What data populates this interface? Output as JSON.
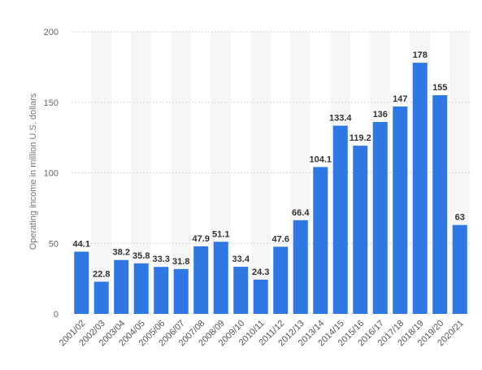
{
  "chart_data": {
    "type": "bar",
    "categories": [
      "2001/02",
      "2002/03",
      "2003/04",
      "2004/05",
      "2005/06",
      "2006/07",
      "2007/08",
      "2008/09",
      "2009/10",
      "2010/11",
      "2011/12",
      "2012/13",
      "2013/14",
      "2014/15",
      "2015/16",
      "2016/17",
      "2017/18",
      "2018/19",
      "2019/20",
      "2020/21"
    ],
    "values": [
      44.1,
      22.8,
      38.2,
      35.8,
      33.3,
      31.8,
      47.9,
      51.1,
      33.4,
      24.3,
      47.6,
      66.4,
      104.1,
      133.4,
      119.2,
      136,
      147,
      178,
      155,
      63
    ],
    "data_labels": [
      "44.1",
      "22.8",
      "38.2",
      "35.8",
      "33.3",
      "31.8",
      "47.9",
      "51.1",
      "33.4",
      "24.3",
      "47.6",
      "66.4",
      "104.1",
      "133.4",
      "119.2",
      "136",
      "147",
      "178",
      "155",
      "63"
    ],
    "title": "",
    "xlabel": "",
    "ylabel": "Operating income in million U.S. dollars",
    "ylim": [
      0,
      200
    ],
    "yticks": [
      0,
      50,
      100,
      150,
      200
    ],
    "ytick_labels": [
      "0",
      "50",
      "100",
      "150",
      "200"
    ],
    "grid": true,
    "legend": false,
    "colors": {
      "bar": "#2f78e3",
      "grid": "#c9c9c9",
      "band": "#f6f6f6"
    }
  }
}
